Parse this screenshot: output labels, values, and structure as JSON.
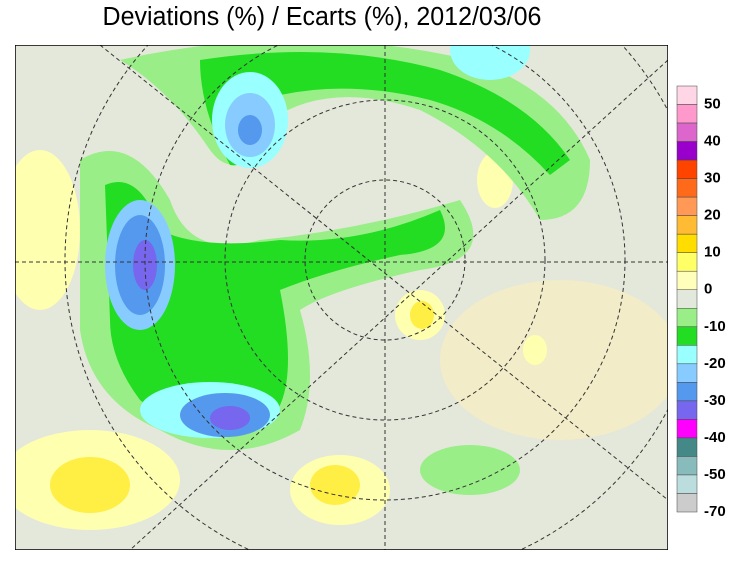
{
  "title": "Deviations (%) / Ecarts (%), 2012/03/06",
  "colorbar": {
    "colors": [
      "#ffd6e6",
      "#ff99cc",
      "#dd66cc",
      "#9900cc",
      "#ff4400",
      "#ff6a1a",
      "#ff9955",
      "#ffbb33",
      "#ffdd00",
      "#ffff66",
      "#ffffbb",
      "#e2e8dc",
      "#99ee88",
      "#22dd22",
      "#99ffff",
      "#88ccff",
      "#5599ee",
      "#7766ee",
      "#ff00ff",
      "#448888",
      "#88bbbb",
      "#bbdddd",
      "#cccccc"
    ],
    "labels": [
      50,
      40,
      30,
      20,
      10,
      0,
      -10,
      -20,
      -30,
      -40,
      -50,
      -70
    ]
  }
}
